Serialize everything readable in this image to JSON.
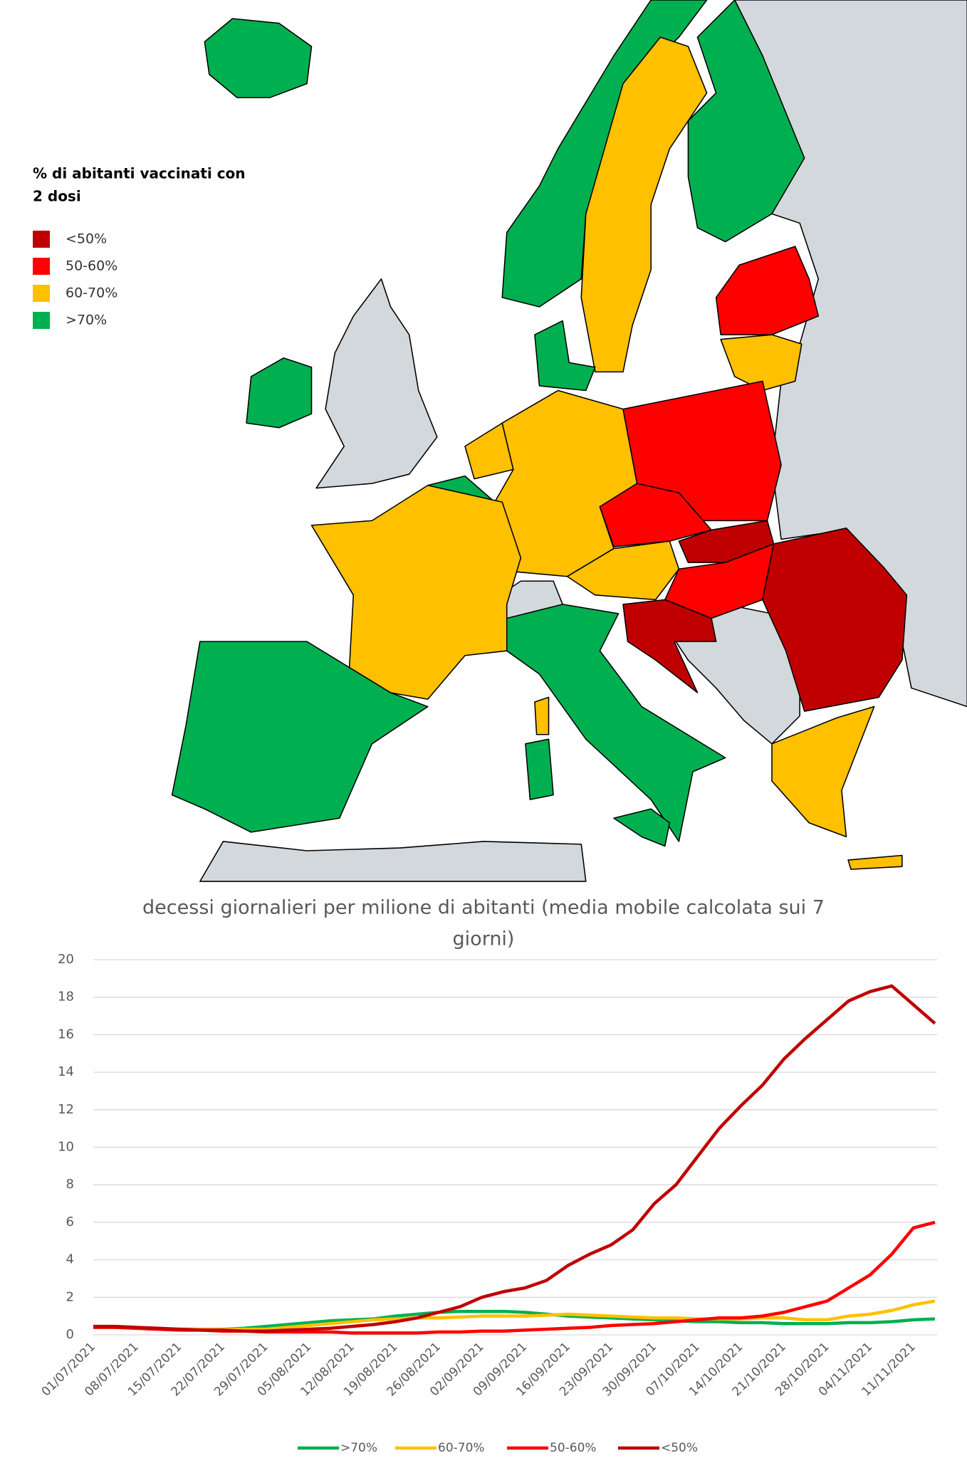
{
  "map_legend": {
    "title": [
      "% di abitanti vaccinati con",
      "2 dosi"
    ],
    "items": [
      {
        "label": "<50%",
        "color": "#c00000"
      },
      {
        "label": "50-60%",
        "color": "#ff0000"
      },
      {
        "label": "60-70%",
        "color": "#ffc000"
      },
      {
        "label": ">70%",
        "color": "#00b050"
      }
    ]
  },
  "chart_data": {
    "type": "line",
    "title": [
      "decessi giornalieri per milione di abitanti (media mobile calcolata sui 7",
      "giorni)"
    ],
    "categories": [
      "01/07/2021",
      null,
      "08/07/2021",
      null,
      "15/07/2021",
      null,
      "22/07/2021",
      null,
      "29/07/2021",
      null,
      "05/08/2021",
      null,
      "12/08/2021",
      null,
      "19/08/2021",
      null,
      "26/08/2021",
      null,
      "02/09/2021",
      null,
      "09/09/2021",
      null,
      "16/09/2021",
      null,
      "23/09/2021",
      null,
      "30/09/2021",
      null,
      "07/10/2021",
      null,
      "14/10/2021",
      null,
      "21/10/2021",
      null,
      "28/10/2021",
      null,
      "04/11/2021",
      null,
      "11/11/2021",
      null
    ],
    "ylim": [
      0,
      20
    ],
    "yticks": [
      0,
      2,
      4,
      6,
      8,
      10,
      12,
      14,
      16,
      18,
      20
    ],
    "grid": true,
    "series": [
      {
        "name": ">70%",
        "color": "#00b050",
        "values": [
          0.4,
          0.4,
          0.35,
          0.3,
          0.3,
          0.3,
          0.3,
          0.35,
          0.45,
          0.55,
          0.65,
          0.75,
          0.8,
          0.85,
          1.0,
          1.1,
          1.2,
          1.25,
          1.25,
          1.25,
          1.2,
          1.1,
          1.0,
          0.95,
          0.9,
          0.85,
          0.8,
          0.75,
          0.7,
          0.7,
          0.65,
          0.65,
          0.6,
          0.6,
          0.6,
          0.65,
          0.65,
          0.7,
          0.8,
          0.85
        ]
      },
      {
        "name": "60-70%",
        "color": "#ffc000",
        "values": [
          0.4,
          0.4,
          0.35,
          0.3,
          0.3,
          0.3,
          0.3,
          0.3,
          0.3,
          0.4,
          0.5,
          0.6,
          0.7,
          0.8,
          0.85,
          0.9,
          0.9,
          0.95,
          1.0,
          1.0,
          1.0,
          1.05,
          1.1,
          1.05,
          1.0,
          0.95,
          0.9,
          0.9,
          0.85,
          0.85,
          0.85,
          0.9,
          0.9,
          0.8,
          0.8,
          1.0,
          1.1,
          1.3,
          1.6,
          1.8
        ]
      },
      {
        "name": "50-60%",
        "color": "#ff0000",
        "values": [
          0.4,
          0.4,
          0.35,
          0.3,
          0.25,
          0.25,
          0.2,
          0.2,
          0.15,
          0.15,
          0.15,
          0.15,
          0.1,
          0.1,
          0.1,
          0.1,
          0.15,
          0.15,
          0.2,
          0.2,
          0.25,
          0.3,
          0.35,
          0.4,
          0.5,
          0.55,
          0.6,
          0.7,
          0.8,
          0.9,
          0.9,
          1.0,
          1.2,
          1.5,
          1.8,
          2.5,
          3.2,
          4.3,
          5.7,
          6.0
        ]
      },
      {
        "name": "<50%",
        "color": "#c00000",
        "values": [
          0.45,
          0.45,
          0.4,
          0.35,
          0.3,
          0.25,
          0.25,
          0.2,
          0.2,
          0.25,
          0.3,
          0.35,
          0.45,
          0.55,
          0.7,
          0.9,
          1.2,
          1.5,
          2.0,
          2.3,
          2.5,
          2.9,
          3.7,
          4.3,
          4.8,
          5.6,
          7.0,
          8.0,
          9.5,
          11.0,
          12.2,
          13.3,
          14.7,
          15.8,
          16.8,
          17.8,
          18.3,
          18.6,
          17.6,
          16.6
        ]
      }
    ]
  }
}
